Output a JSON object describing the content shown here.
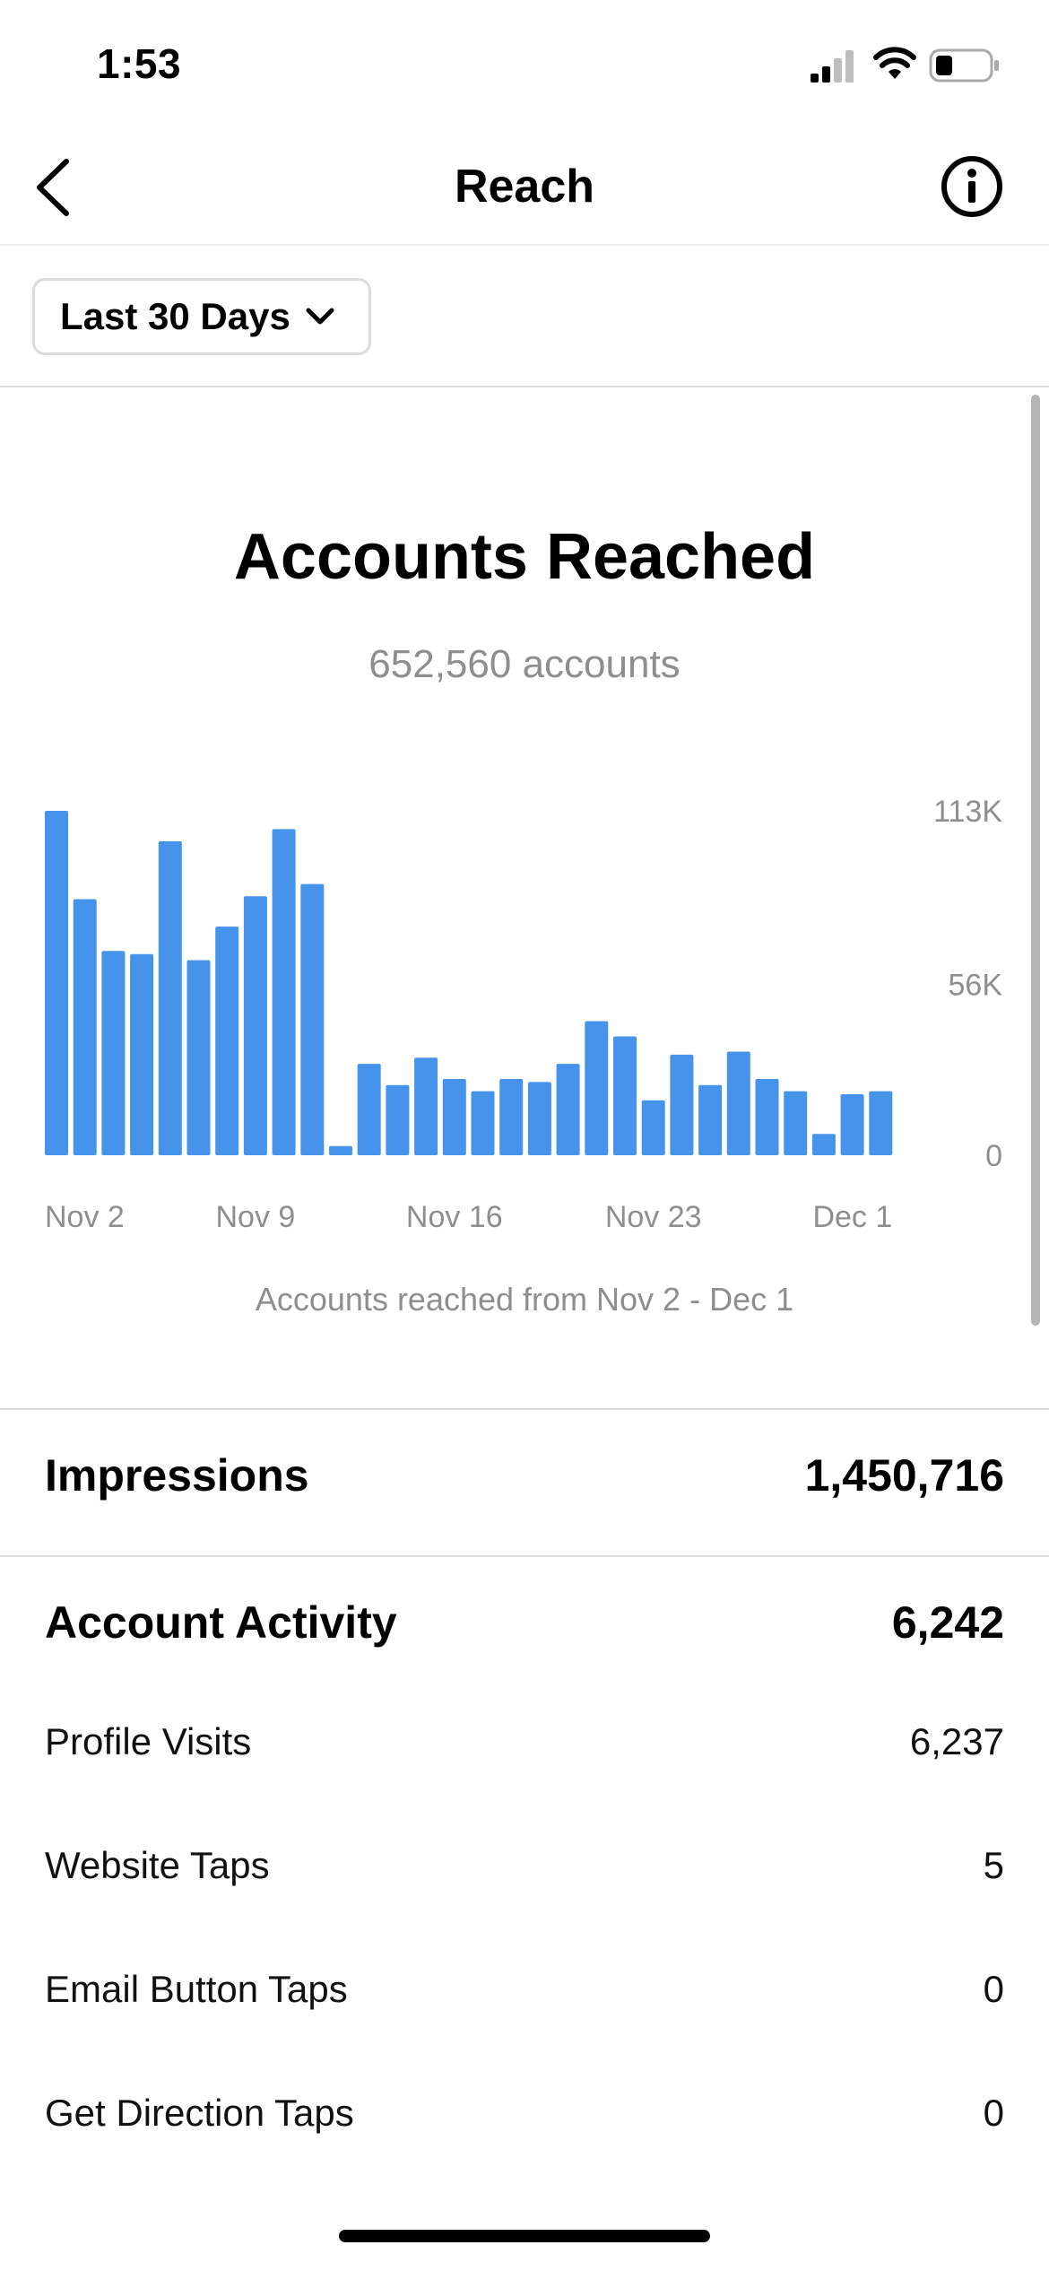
{
  "status_bar": {
    "time": "1:53"
  },
  "nav": {
    "title": "Reach"
  },
  "filter": {
    "range_label": "Last 30 Days"
  },
  "colors": {
    "bar": "#4593EB",
    "muted_text": "#8e8e8e",
    "divider": "#dedede"
  },
  "summary": {
    "title": "Accounts Reached",
    "subtitle": "652,560 accounts",
    "caption": "Accounts reached from Nov 2 - Dec 1"
  },
  "chart_data": {
    "type": "bar",
    "title": "",
    "xlabel": "",
    "ylabel": "",
    "ylim": [
      0,
      113000
    ],
    "y_ticks": [
      {
        "value": 113000,
        "label": "113K"
      },
      {
        "value": 56000,
        "label": "56K"
      },
      {
        "value": 0,
        "label": "0"
      }
    ],
    "x_tick_labels": [
      "Nov 2",
      "Nov 9",
      "Nov 16",
      "Nov 23",
      "Dec 1"
    ],
    "categories": [
      "Nov 2",
      "Nov 3",
      "Nov 4",
      "Nov 5",
      "Nov 6",
      "Nov 7",
      "Nov 8",
      "Nov 9",
      "Nov 10",
      "Nov 11",
      "Nov 12",
      "Nov 13",
      "Nov 14",
      "Nov 15",
      "Nov 16",
      "Nov 17",
      "Nov 18",
      "Nov 19",
      "Nov 20",
      "Nov 21",
      "Nov 22",
      "Nov 23",
      "Nov 24",
      "Nov 25",
      "Nov 26",
      "Nov 27",
      "Nov 28",
      "Nov 29",
      "Nov 30",
      "Dec 1"
    ],
    "values": [
      113000,
      84000,
      67000,
      66000,
      103000,
      64000,
      75000,
      85000,
      107000,
      89000,
      3000,
      30000,
      23000,
      32000,
      25000,
      21000,
      25000,
      24000,
      30000,
      44000,
      39000,
      18000,
      33000,
      23000,
      34000,
      25000,
      21000,
      7000,
      20000,
      21000
    ]
  },
  "impressions": {
    "label": "Impressions",
    "value": "1,450,716"
  },
  "activity": {
    "label": "Account Activity",
    "value": "6,242",
    "rows": [
      {
        "label": "Profile Visits",
        "value": "6,237"
      },
      {
        "label": "Website Taps",
        "value": "5"
      },
      {
        "label": "Email Button Taps",
        "value": "0"
      },
      {
        "label": "Get Direction Taps",
        "value": "0"
      }
    ]
  }
}
